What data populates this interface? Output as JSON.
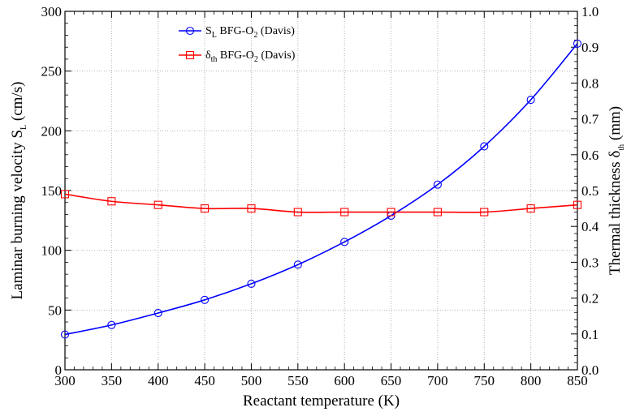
{
  "chart_data": {
    "type": "line",
    "x": [
      300,
      350,
      400,
      450,
      500,
      550,
      600,
      650,
      700,
      750,
      800,
      850
    ],
    "xlim": [
      300,
      850
    ],
    "x_ticks": [
      "300",
      "350",
      "400",
      "450",
      "500",
      "550",
      "600",
      "650",
      "700",
      "750",
      "800",
      "850"
    ],
    "xlabel": "Reactant temperature (K)",
    "y_left": {
      "label_main": "Laminar burning velocity S",
      "label_sub": "L",
      "label_tail": " (cm/s)",
      "lim": [
        0,
        300
      ],
      "ticks": [
        "0",
        "50",
        "100",
        "150",
        "200",
        "250",
        "300"
      ]
    },
    "y_right": {
      "label_main": "Thermal thickness δ",
      "label_sub": "th",
      "label_tail": " (mm)",
      "lim": [
        0,
        1.0
      ],
      "ticks": [
        "0.0",
        "0.1",
        "0.2",
        "0.3",
        "0.4",
        "0.5",
        "0.6",
        "0.7",
        "0.8",
        "0.9",
        "1.0"
      ]
    },
    "grid": true,
    "legend_position": "top-center",
    "series": [
      {
        "name": "S_L BFG-O2 (Davis)",
        "legend_main": "S",
        "legend_sub": "L",
        "legend_mid": " BFG-O",
        "legend_sub2": "2",
        "legend_tail": " (Davis)",
        "axis": "left",
        "color": "#0000ff",
        "marker": "circle",
        "values": [
          29.5,
          37.5,
          47.5,
          58.5,
          72,
          88,
          107,
          129,
          155,
          187,
          226,
          273
        ]
      },
      {
        "name": "δ_th BFG-O2 (Davis)",
        "legend_main": "δ",
        "legend_sub": "th",
        "legend_mid": " BFG-O",
        "legend_sub2": "2",
        "legend_tail": " (Davis)",
        "axis": "right",
        "color": "#ff0000",
        "marker": "square",
        "values": [
          0.49,
          0.47,
          0.46,
          0.45,
          0.45,
          0.44,
          0.44,
          0.44,
          0.44,
          0.44,
          0.45,
          0.46
        ]
      }
    ]
  }
}
